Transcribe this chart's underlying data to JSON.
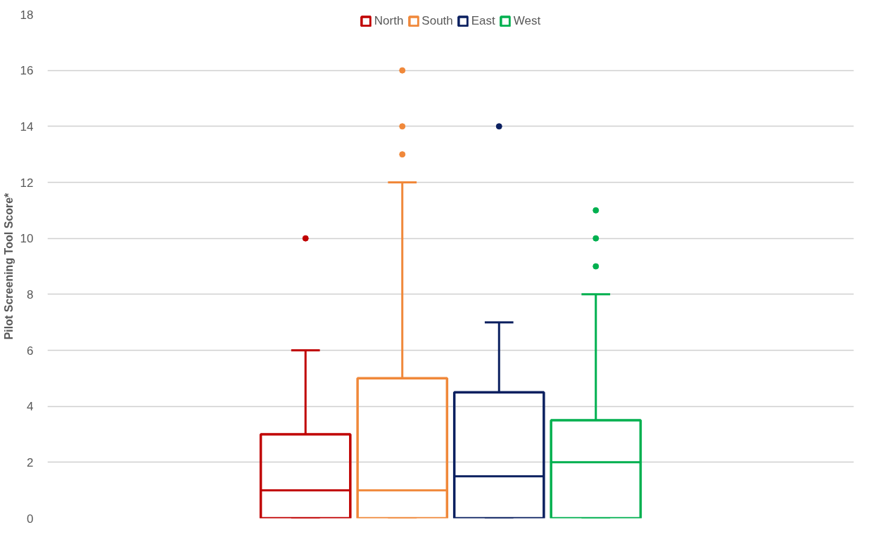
{
  "chart_data": {
    "type": "box",
    "ylabel": "Pilot Screening Tool Score*",
    "categories": [
      null
    ],
    "ylim": [
      0,
      18
    ],
    "yticks": [
      0,
      2,
      4,
      6,
      8,
      10,
      12,
      14,
      16,
      18
    ],
    "grid": "y",
    "legend": "top",
    "tick_labels": "y",
    "series": [
      {
        "name": "North",
        "color": "#c00000",
        "boxes": [
          {
            "low": 0,
            "q1": 0,
            "median": 1,
            "q3": 3,
            "high": 6,
            "outliers": [
              10
            ]
          }
        ]
      },
      {
        "name": "South",
        "color": "#f0883a",
        "boxes": [
          {
            "low": 0,
            "q1": 0,
            "median": 1,
            "q3": 5,
            "high": 12,
            "outliers": [
              13,
              14,
              16
            ]
          }
        ]
      },
      {
        "name": "East",
        "color": "#0b2060",
        "boxes": [
          {
            "low": 0,
            "q1": 0,
            "median": 1.5,
            "q3": 4.5,
            "high": 7,
            "outliers": [
              14
            ]
          }
        ]
      },
      {
        "name": "West",
        "color": "#00b04f",
        "boxes": [
          {
            "low": 0,
            "q1": 0,
            "median": 2,
            "q3": 3.5,
            "high": 8,
            "outliers": [
              9,
              10,
              11
            ]
          }
        ]
      }
    ]
  }
}
